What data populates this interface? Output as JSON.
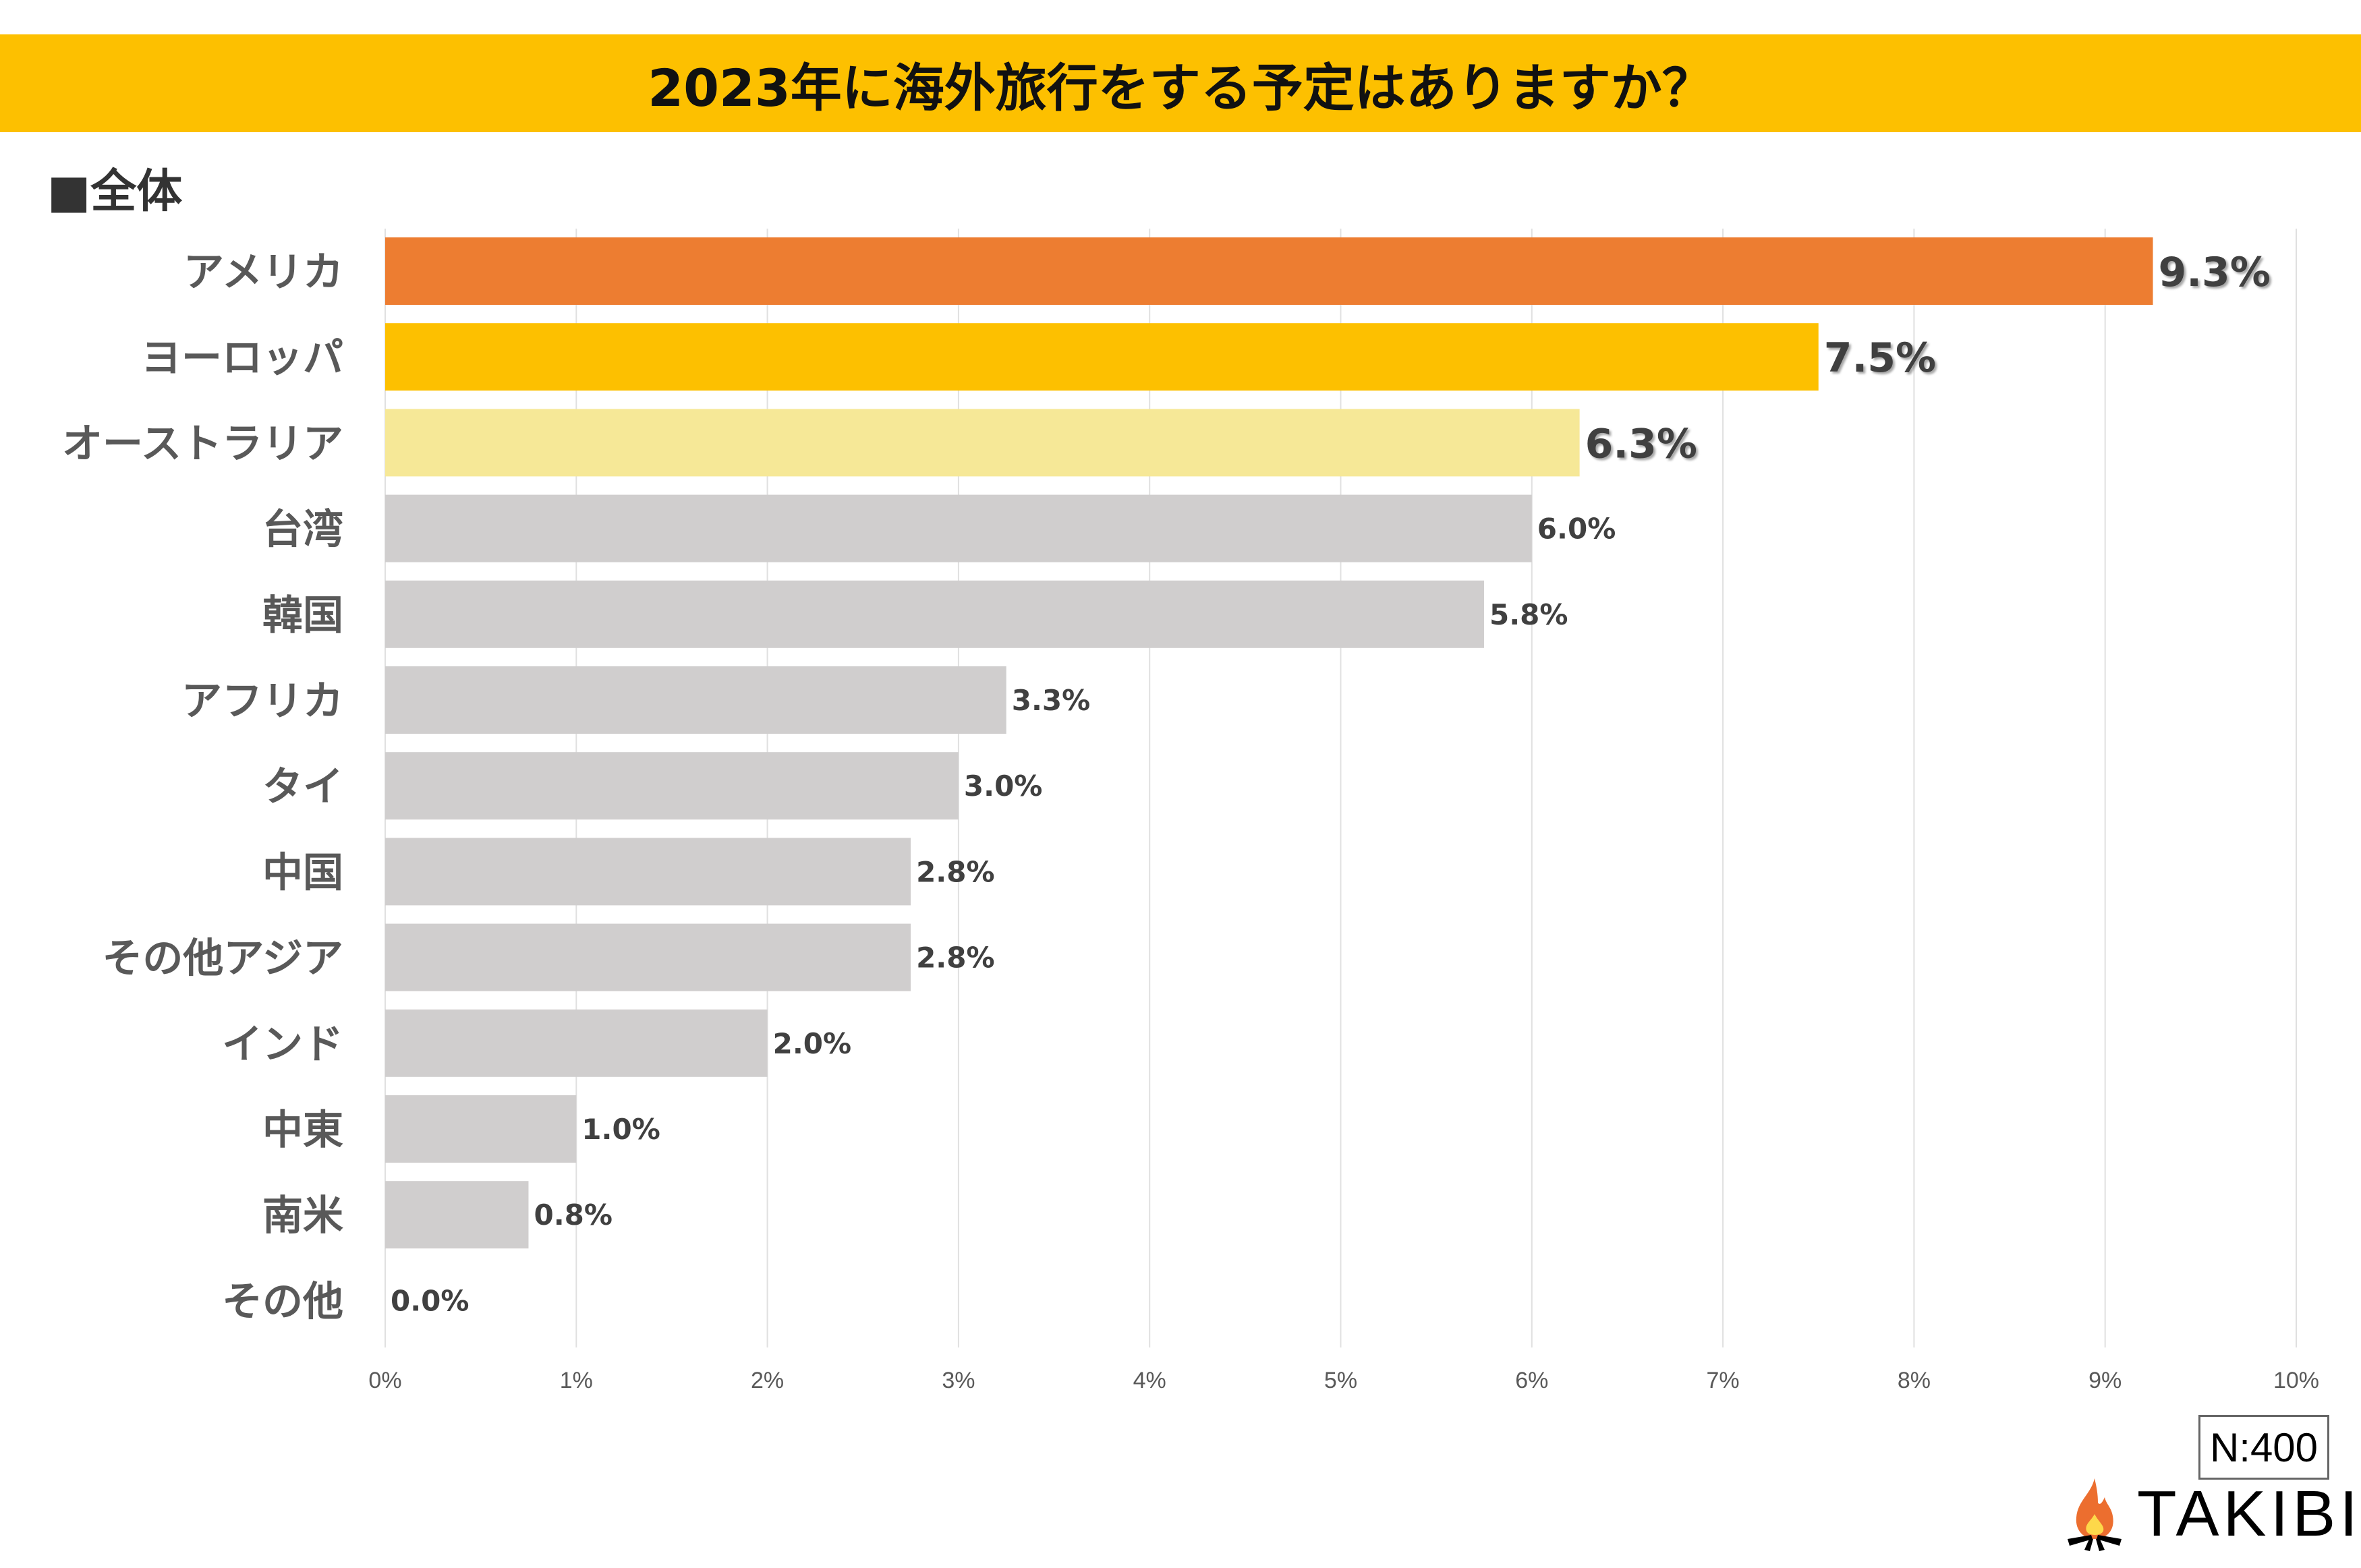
{
  "chart_data": {
    "type": "bar",
    "orientation": "horizontal",
    "title": "2023年に海外旅行をする予定はありますか？",
    "subtitle": "■全体",
    "categories": [
      "アメリカ",
      "ヨーロッパ",
      "オーストラリア",
      "台湾",
      "韓国",
      "アフリカ",
      "タイ",
      "中国",
      "その他アジア",
      "インド",
      "中東",
      "南米",
      "その他"
    ],
    "values": [
      9.25,
      7.5,
      6.25,
      6.0,
      5.75,
      3.25,
      3.0,
      2.75,
      2.75,
      2.0,
      1.0,
      0.75,
      0.0
    ],
    "labels": [
      "9.3%",
      "7.5%",
      "6.3%",
      "6.0%",
      "5.8%",
      "3.3%",
      "3.0%",
      "2.8%",
      "2.8%",
      "2.0%",
      "1.0%",
      "0.8%",
      "0.0%"
    ],
    "colors": [
      "#ed7d31",
      "#fdc000",
      "#f6e897",
      "#d0cece",
      "#d0cece",
      "#d0cece",
      "#d0cece",
      "#d0cece",
      "#d0cece",
      "#d0cece",
      "#d0cece",
      "#d0cece",
      "#d0cece"
    ],
    "xlim": [
      0,
      10
    ],
    "xticks": [
      "0%",
      "1%",
      "2%",
      "3%",
      "4%",
      "5%",
      "6%",
      "7%",
      "8%",
      "9%",
      "10%"
    ],
    "xlabel": "",
    "ylabel": "",
    "grid": true,
    "legend": "none"
  },
  "sample_size": "N:400",
  "brand": "TAKIBI"
}
